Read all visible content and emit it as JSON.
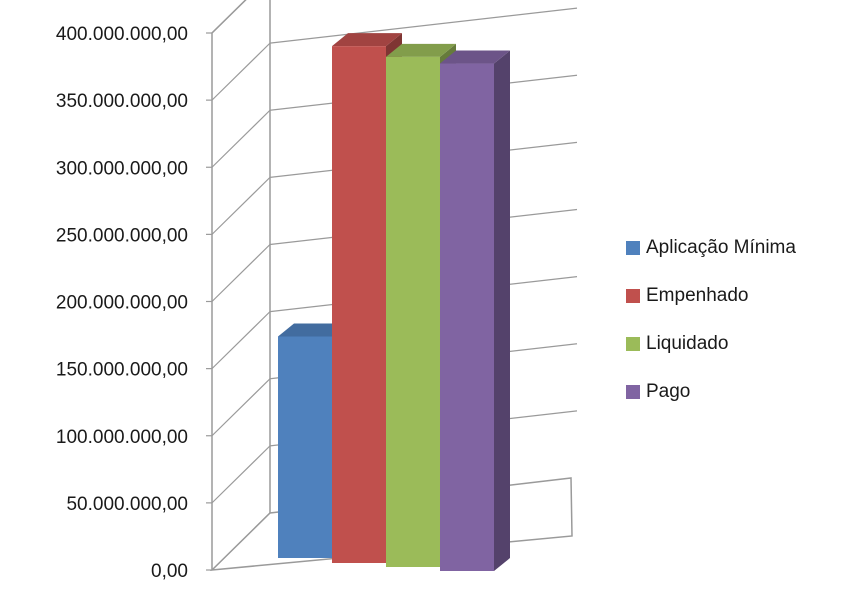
{
  "chart_data": {
    "type": "bar",
    "title": "",
    "xlabel": "",
    "ylabel": "",
    "ylim": [
      0,
      400000000
    ],
    "yticks": [
      "0,00",
      "50.000.000,00",
      "100.000.000,00",
      "150.000.000,00",
      "200.000.000,00",
      "250.000.000,00",
      "300.000.000,00",
      "350.000.000,00",
      "400.000.000,00"
    ],
    "grid": true,
    "legend_position": "right",
    "three_d": true,
    "series": [
      {
        "name": "Aplicação Mínima",
        "value": 165000000,
        "color": "#4F81BD"
      },
      {
        "name": "Empenhado",
        "value": 385000000,
        "color": "#C0504D"
      },
      {
        "name": "Liquidado",
        "value": 380000000,
        "color": "#9BBB59"
      },
      {
        "name": "Pago",
        "value": 378000000,
        "color": "#8064A2"
      }
    ]
  }
}
